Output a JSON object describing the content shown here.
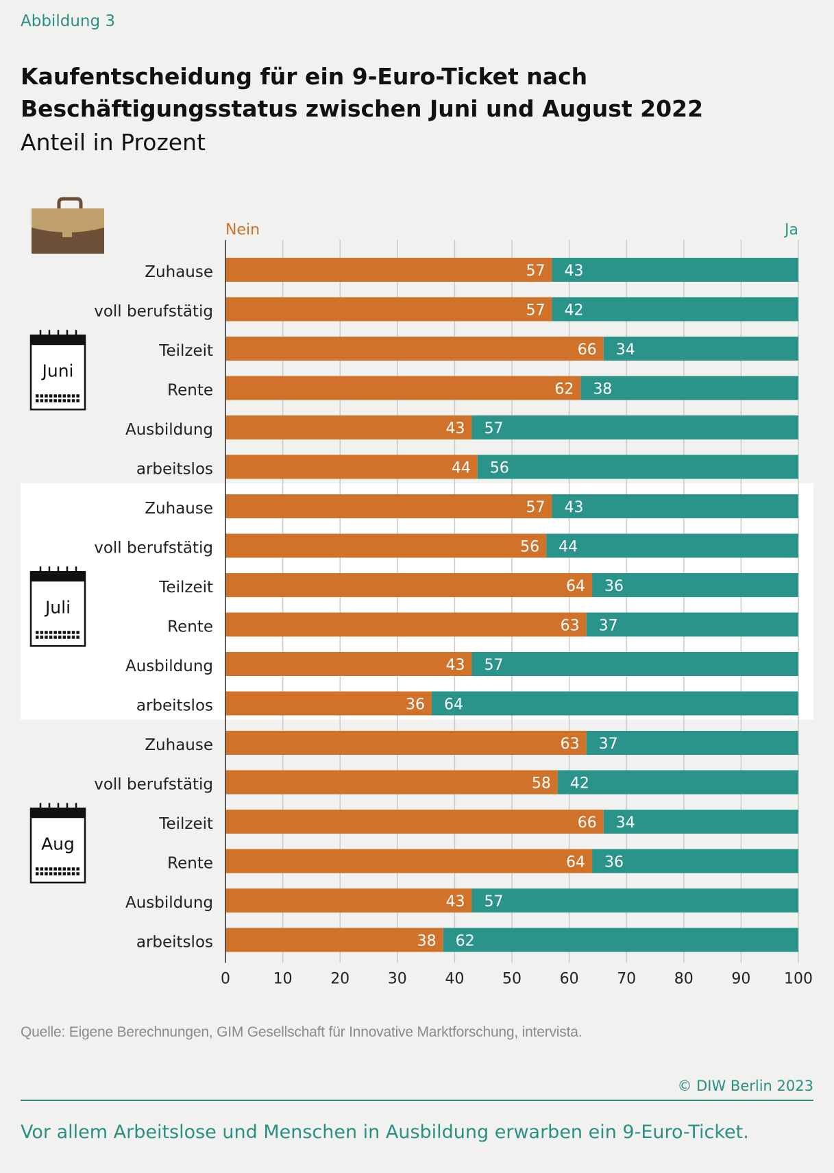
{
  "figure_label": "Abbildung 3",
  "title": "Kaufentscheidung für ein 9-Euro-Ticket nach Beschäftigungsstatus zwischen Juni und August 2022",
  "subtitle": "Anteil in Prozent",
  "source": "Quelle: Eigene Berechnungen, GIM Gesellschaft für Innovative Marktforschung, intervista.",
  "copyright": "© DIW Berlin 2023",
  "caption": "Vor allem Arbeitslose und Menschen in Ausbildung erwarben ein 9-Euro-Ticket.",
  "colors": {
    "nein": "#d0722a",
    "ja": "#2a948a",
    "accent": "#2a8f84",
    "highlight_band": "#ffffff",
    "background": "#f1f1ef"
  },
  "icons": {
    "header": "briefcase-icon",
    "group": "calendar-icon"
  },
  "chart_data": {
    "type": "bar",
    "orientation": "horizontal",
    "stacked": true,
    "xlim": [
      0,
      100
    ],
    "xticks": [
      0,
      10,
      20,
      30,
      40,
      50,
      60,
      70,
      80,
      90,
      100
    ],
    "grid": true,
    "legend": {
      "nein": "Nein",
      "ja": "Ja"
    },
    "groups": [
      {
        "name": "Juni",
        "rows": [
          {
            "category": "Zuhause",
            "nein": 57,
            "ja": 43
          },
          {
            "category": "voll berufstätig",
            "nein": 57,
            "ja": 42
          },
          {
            "category": "Teilzeit",
            "nein": 66,
            "ja": 34
          },
          {
            "category": "Rente",
            "nein": 62,
            "ja": 38
          },
          {
            "category": "Ausbildung",
            "nein": 43,
            "ja": 57
          },
          {
            "category": "arbeitslos",
            "nein": 44,
            "ja": 56
          }
        ]
      },
      {
        "name": "Juli",
        "rows": [
          {
            "category": "Zuhause",
            "nein": 57,
            "ja": 43
          },
          {
            "category": "voll berufstätig",
            "nein": 56,
            "ja": 44
          },
          {
            "category": "Teilzeit",
            "nein": 64,
            "ja": 36
          },
          {
            "category": "Rente",
            "nein": 63,
            "ja": 37
          },
          {
            "category": "Ausbildung",
            "nein": 43,
            "ja": 57
          },
          {
            "category": "arbeitslos",
            "nein": 36,
            "ja": 64
          }
        ]
      },
      {
        "name": "Aug",
        "rows": [
          {
            "category": "Zuhause",
            "nein": 63,
            "ja": 37
          },
          {
            "category": "voll berufstätig",
            "nein": 58,
            "ja": 42
          },
          {
            "category": "Teilzeit",
            "nein": 66,
            "ja": 34
          },
          {
            "category": "Rente",
            "nein": 64,
            "ja": 36
          },
          {
            "category": "Ausbildung",
            "nein": 43,
            "ja": 57
          },
          {
            "category": "arbeitslos",
            "nein": 38,
            "ja": 62
          }
        ]
      }
    ]
  }
}
